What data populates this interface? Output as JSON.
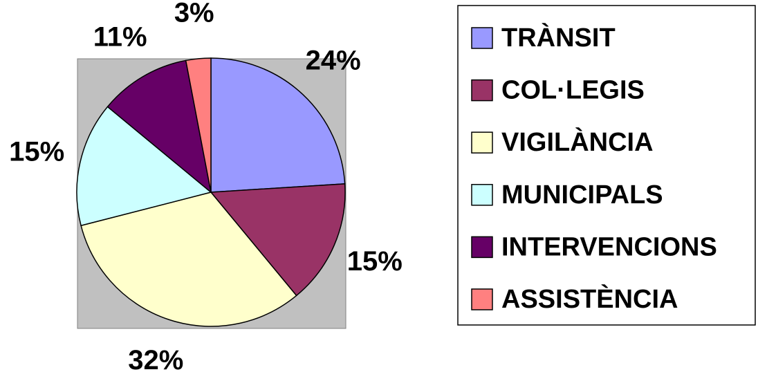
{
  "chart_data": {
    "type": "pie",
    "categories": [
      "TRÀNSIT",
      "COL·LEGIS",
      "VIGILÀNCIA",
      "MUNICIPALS",
      "INTERVENCIONS",
      "ASSISTÈNCIA"
    ],
    "values": [
      24,
      15,
      32,
      15,
      11,
      3
    ],
    "value_labels": [
      "24%",
      "15%",
      "32%",
      "15%",
      "11%",
      "3%"
    ],
    "colors": [
      "#9999ff",
      "#993366",
      "#ffffcc",
      "#ccffff",
      "#660066",
      "#ff8080"
    ],
    "legend": "right"
  }
}
